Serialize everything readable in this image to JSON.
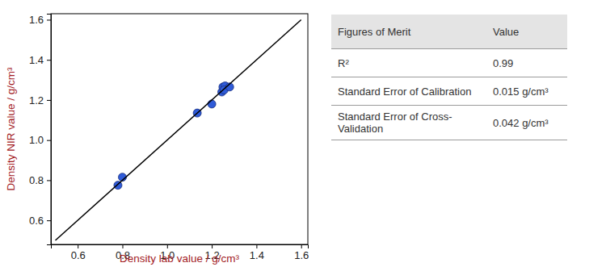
{
  "chart_data": {
    "type": "scatter",
    "x_label": "Density lab value / g/cm³",
    "y_label": "Density NIR value / g/cm³",
    "xlim": [
      0.48,
      1.63
    ],
    "ylim": [
      0.48,
      1.63
    ],
    "xticks": [
      0.6,
      0.8,
      {
        "value": 1,
        "label": "1.0"
      },
      1.2,
      1.4,
      1.6
    ],
    "yticks": [
      0.6,
      0.8,
      {
        "value": 1,
        "label": "1.0"
      },
      1.2,
      1.4,
      1.6
    ],
    "grid": false,
    "series": [
      {
        "type": "scatter",
        "color": "#2f5bd8",
        "x": [
          0.78,
          0.8,
          1.135,
          1.2,
          1.245,
          1.25,
          1.26,
          1.255,
          1.28
        ],
        "values": [
          0.775,
          0.815,
          1.135,
          1.18,
          1.24,
          1.265,
          1.27,
          1.25,
          1.265
        ]
      },
      {
        "type": "line",
        "color": "#000000",
        "x": [
          0.5,
          1.6
        ],
        "values": [
          0.5,
          1.6
        ]
      }
    ]
  },
  "table": {
    "header": [
      "Figures of Merit",
      "Value"
    ],
    "rows": [
      [
        "R²",
        "0.99"
      ],
      [
        "Standard Error of Calibration",
        "0.015 g/cm³"
      ],
      [
        "Standard Error of Cross-Validation",
        "0.042 g/cm³"
      ]
    ]
  }
}
